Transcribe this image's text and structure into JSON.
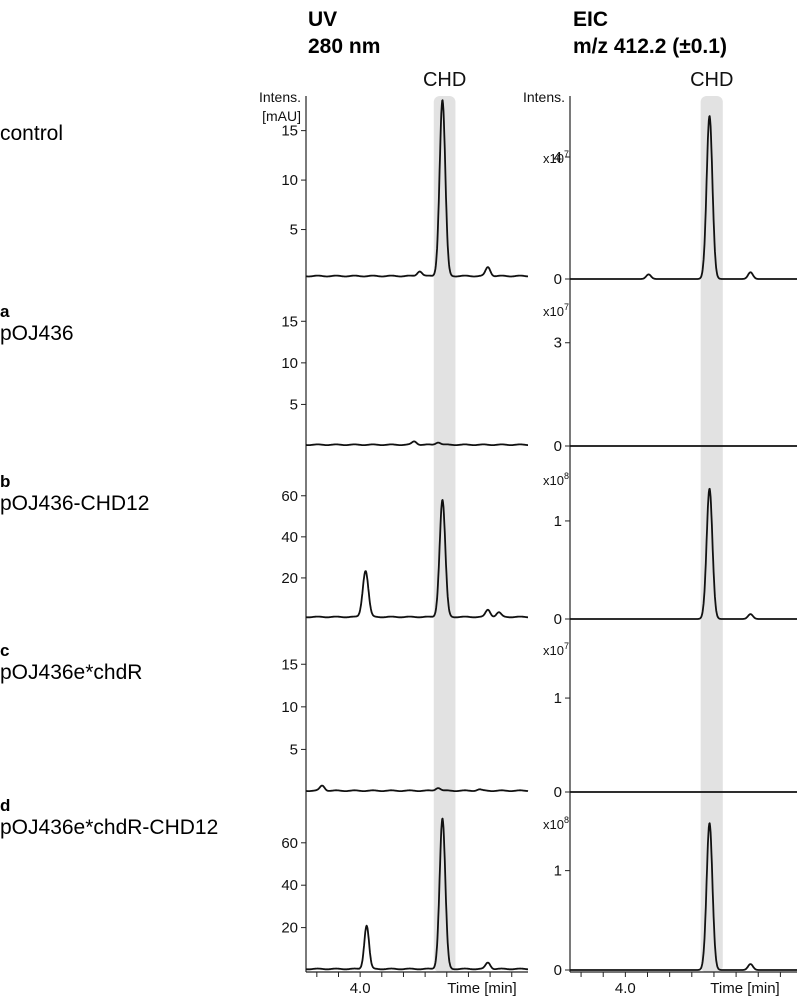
{
  "headers": {
    "uv": [
      "UV",
      "280 nm"
    ],
    "eic": [
      "EIC",
      "m/z 412.2 (±0.1)"
    ]
  },
  "peak_label": "CHD",
  "chart_data": {
    "type": "line",
    "panels_per_column": 5,
    "columns": [
      {
        "id": "uv",
        "title": "UV 280 nm",
        "ylabel_top": [
          "Intens.",
          "[mAU]"
        ],
        "xlabel": "Time [min]",
        "xtick_label": "4.0",
        "x_unit_label": "Time [min]"
      },
      {
        "id": "eic",
        "title": "EIC m/z 412.2 (±0.1)",
        "ylabel_top": [
          "Intens."
        ],
        "xlabel": "Time [min]",
        "xtick_label": "4.0",
        "x_unit_label": "Time [min]"
      }
    ],
    "rows": [
      {
        "tag": "",
        "name": "control",
        "uv": {
          "yticks": [
            "5",
            "10",
            "15"
          ],
          "ytick_values": [
            5,
            10,
            15
          ],
          "ylim": [
            0,
            18.5
          ],
          "baseline": 0.3,
          "peaks": [
            {
              "t": 4.55,
              "h": 0.5
            },
            {
              "t": 4.76,
              "h": 17.8
            },
            {
              "t": 5.18,
              "h": 0.9
            }
          ]
        },
        "eic": {
          "multiplier": "x10",
          "exponent": "7",
          "yticks": [
            "0",
            "4"
          ],
          "ytick_values": [
            0,
            4
          ],
          "ylim": [
            0,
            6.0
          ],
          "baseline": 0.0,
          "peaks": [
            {
              "t": 4.21,
              "h": 0.15
            },
            {
              "t": 4.76,
              "h": 5.35
            },
            {
              "t": 5.13,
              "h": 0.22
            }
          ]
        }
      },
      {
        "tag": "a",
        "name": "pOJ436",
        "uv": {
          "yticks": [
            "5",
            "10",
            "15"
          ],
          "ytick_values": [
            5,
            10,
            15
          ],
          "ylim": [
            0,
            17.8
          ],
          "baseline": 0.15,
          "peaks": [
            {
              "t": 4.5,
              "h": 0.4
            },
            {
              "t": 4.72,
              "h": 0.3
            }
          ]
        },
        "eic": {
          "multiplier": "x10",
          "exponent": "7",
          "yticks": [
            "0",
            "3"
          ],
          "ytick_values": [
            0,
            3
          ],
          "ylim": [
            0,
            4.3
          ],
          "baseline": 0.0,
          "peaks": []
        }
      },
      {
        "tag": "b",
        "name": "pOJ436-CHD12",
        "uv": {
          "yticks": [
            "20",
            "40",
            "60"
          ],
          "ytick_values": [
            20,
            40,
            60
          ],
          "ylim": [
            0,
            74
          ],
          "baseline": 1.0,
          "peaks": [
            {
              "t": 4.05,
              "h": 22.5
            },
            {
              "t": 4.76,
              "h": 57.0
            },
            {
              "t": 5.18,
              "h": 3.5
            },
            {
              "t": 5.28,
              "h": 2.2
            }
          ]
        },
        "eic": {
          "multiplier": "x10",
          "exponent": "8",
          "yticks": [
            "0",
            "1"
          ],
          "ytick_values": [
            0,
            1
          ],
          "ylim": [
            0,
            1.55
          ],
          "baseline": 0.0,
          "peaks": [
            {
              "t": 4.76,
              "h": 1.33
            },
            {
              "t": 5.13,
              "h": 0.05
            }
          ]
        }
      },
      {
        "tag": "c",
        "name": "pOJ436e*chdR",
        "uv": {
          "yticks": [
            "5",
            "10",
            "15"
          ],
          "ytick_values": [
            5,
            10,
            15
          ],
          "ylim": [
            0,
            18.2
          ],
          "baseline": 0.15,
          "peaks": [
            {
              "t": 3.65,
              "h": 0.6
            },
            {
              "t": 4.72,
              "h": 0.35
            },
            {
              "t": 5.1,
              "h": 0.15
            }
          ]
        },
        "eic": {
          "multiplier": "x10",
          "exponent": "7",
          "yticks": [
            "0",
            "1"
          ],
          "ytick_values": [
            0,
            1
          ],
          "ylim": [
            0,
            1.65
          ],
          "baseline": 0.0,
          "peaks": []
        }
      },
      {
        "tag": "d",
        "name": "pOJ436e*chdR-CHD12",
        "uv": {
          "yticks": [
            "20",
            "40",
            "60"
          ],
          "ytick_values": [
            20,
            40,
            60
          ],
          "ylim": [
            0,
            75
          ],
          "baseline": 0.5,
          "peaks": [
            {
              "t": 4.06,
              "h": 20.5
            },
            {
              "t": 4.76,
              "h": 71.0
            },
            {
              "t": 5.18,
              "h": 3.0
            }
          ]
        },
        "eic": {
          "multiplier": "x10",
          "exponent": "8",
          "yticks": [
            "0",
            "1"
          ],
          "ytick_values": [
            0,
            1
          ],
          "ylim": [
            0,
            1.6
          ],
          "baseline": 0.0,
          "peaks": [
            {
              "t": 4.76,
              "h": 1.48
            },
            {
              "t": 5.13,
              "h": 0.06
            }
          ]
        }
      }
    ]
  }
}
